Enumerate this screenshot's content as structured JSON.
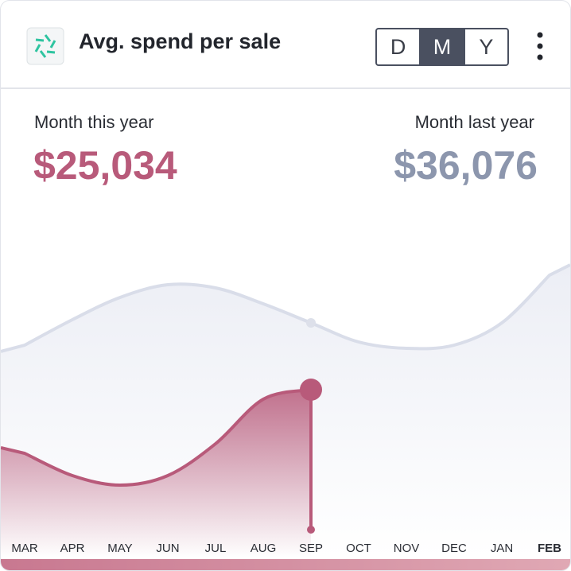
{
  "header": {
    "title": "Avg. spend per sale",
    "buttons": [
      "D",
      "M",
      "Y"
    ]
  },
  "stats": [
    {
      "label": "Month this year",
      "value": "$25,034"
    },
    {
      "label": "Month last year",
      "value": "$36,076"
    }
  ],
  "chart_data": {
    "type": "area",
    "categories": [
      "MAR",
      "APR",
      "MAY",
      "JUN",
      "JUL",
      "AUG",
      "SEP",
      "OCT",
      "NOV",
      "DEC",
      "JAN",
      "FEB"
    ],
    "series": [
      {
        "name": "Month last year",
        "color": "#d9dde9",
        "values": [
          58,
          66,
          73,
          77,
          76,
          71,
          65,
          59,
          57,
          58,
          65,
          80
        ]
      },
      {
        "name": "Month this year",
        "color": "#b85a7a",
        "values": [
          24,
          17,
          14,
          17,
          27,
          41,
          44,
          null,
          null,
          null,
          null,
          null
        ]
      }
    ],
    "ylim": [
      0,
      100
    ]
  }
}
